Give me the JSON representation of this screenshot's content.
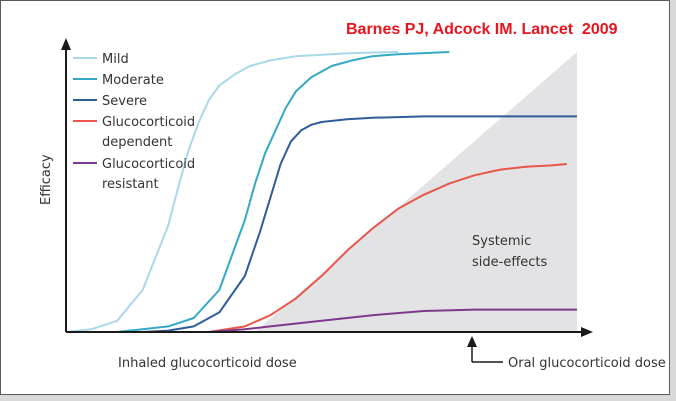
{
  "citation": {
    "text": "Barnes PJ, Adcock IM. Lancet  2009",
    "color": "#e8141c"
  },
  "chart_data": {
    "type": "line",
    "ylabel": "Efficacy",
    "xlabel": "Inhaled glucocorticoid dose",
    "secondary_xlabel": "Oral glucocorticoid dose",
    "region_label": [
      "Systemic",
      "side-effects"
    ],
    "region_color": "#e3e3e5",
    "xlim": [
      0,
      100
    ],
    "ylim": [
      0,
      100
    ],
    "series": [
      {
        "name": "Mild",
        "color": "#a9d8ea",
        "x": [
          0,
          5,
          10,
          15,
          20,
          22,
          24,
          26,
          28,
          30,
          33,
          36,
          40,
          45,
          50,
          55,
          60,
          65
        ],
        "y": [
          0,
          1,
          4,
          15,
          38,
          52,
          65,
          75,
          83,
          88,
          92,
          95,
          97,
          98.5,
          99,
          99.5,
          99.8,
          100
        ]
      },
      {
        "name": "Moderate",
        "color": "#35a9c4",
        "x": [
          10,
          15,
          20,
          25,
          30,
          35,
          37,
          39,
          41,
          43,
          45,
          48,
          52,
          56,
          60,
          65,
          70,
          75
        ],
        "y": [
          0,
          1,
          2,
          5,
          15,
          40,
          53,
          64,
          72,
          80,
          86,
          91,
          95,
          97,
          98.5,
          99.2,
          99.6,
          100
        ]
      },
      {
        "name": "Severe",
        "color": "#2e5d99",
        "x": [
          15,
          20,
          25,
          30,
          35,
          38,
          40,
          42,
          44,
          46,
          48,
          50,
          55,
          60,
          70,
          80,
          90,
          100
        ],
        "y": [
          0,
          0.5,
          2,
          7,
          20,
          36,
          48,
          60,
          68,
          72,
          74,
          75,
          76,
          76.5,
          77,
          77,
          77,
          77
        ]
      },
      {
        "name": "Glucocorticoid dependent",
        "color": "#e8574a",
        "x": [
          28,
          35,
          40,
          45,
          50,
          55,
          60,
          65,
          70,
          75,
          80,
          85,
          90,
          95,
          98
        ],
        "y": [
          0,
          2,
          6,
          12,
          20,
          29,
          37,
          44,
          49,
          53,
          56,
          58,
          59,
          59.5,
          60
        ]
      },
      {
        "name": "Glucocorticoid resistant",
        "color": "#7d3a8c",
        "x": [
          28,
          35,
          40,
          50,
          60,
          70,
          80,
          90,
          100
        ],
        "y": [
          0,
          1,
          2,
          4,
          6,
          7.5,
          8,
          8,
          8
        ]
      }
    ],
    "legend": {
      "position": "top-left"
    },
    "grid": false
  }
}
